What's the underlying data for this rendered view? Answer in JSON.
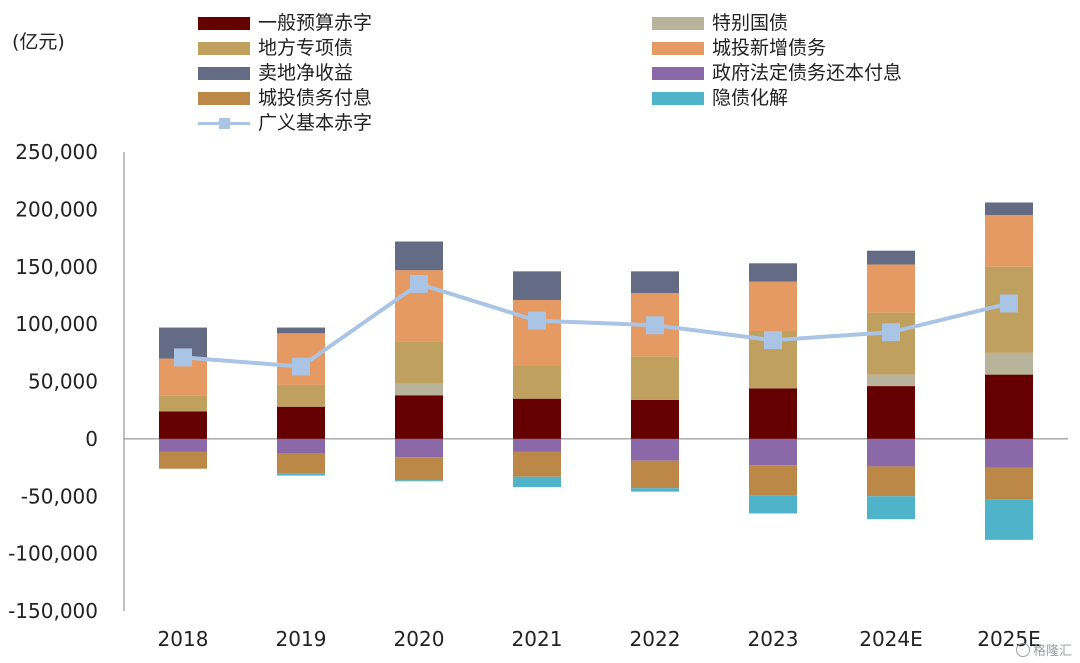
{
  "unit_label": "(亿元)",
  "watermark": "格隆汇",
  "colors": {
    "general_deficit": "#660000",
    "special_treasury": "#b8b49b",
    "special_local_bonds": "#bfa05e",
    "lgfv_new_debt": "#e59a63",
    "land_sales": "#636b85",
    "statutory_debt_principal": "#8b68a8",
    "lgfv_interest": "#bb8848",
    "hidden_debt_resolution": "#4fb3c9",
    "broad_deficit_line": "#a9c4e4",
    "broad_deficit_marker": "#a9c4e4"
  },
  "legend": [
    {
      "key": "general_deficit",
      "label": "一般预算赤字"
    },
    {
      "key": "special_treasury",
      "label": "特别国债"
    },
    {
      "key": "special_local_bonds",
      "label": "地方专项债"
    },
    {
      "key": "lgfv_new_debt",
      "label": "城投新增债务"
    },
    {
      "key": "land_sales",
      "label": "卖地净收益"
    },
    {
      "key": "statutory_debt_principal",
      "label": "政府法定债务还本付息"
    },
    {
      "key": "lgfv_interest",
      "label": "城投债务付息"
    },
    {
      "key": "hidden_debt_resolution",
      "label": "隐债化解"
    },
    {
      "key": "broad_deficit",
      "label": "广义基本赤字"
    }
  ],
  "chart_data": {
    "type": "bar",
    "stacked": true,
    "title": "",
    "ylabel": "(亿元)",
    "ylim": [
      -150000,
      250000
    ],
    "yticks": [
      250000,
      200000,
      150000,
      100000,
      50000,
      0,
      -50000,
      -100000,
      -150000
    ],
    "ytick_labels": [
      "250,000",
      "200,000",
      "150,000",
      "100,000",
      "50,000",
      "0",
      "-50,000",
      "-100,000",
      "-150,000"
    ],
    "categories": [
      "2018",
      "2019",
      "2020",
      "2021",
      "2022",
      "2023",
      "2024E",
      "2025E"
    ],
    "series": [
      {
        "key": "general_deficit",
        "name": "一般预算赤字",
        "values": [
          24000,
          28000,
          38000,
          35000,
          34000,
          44000,
          46000,
          56000
        ]
      },
      {
        "key": "special_treasury",
        "name": "特别国债",
        "values": [
          0,
          0,
          10000,
          0,
          0,
          0,
          10000,
          19000
        ]
      },
      {
        "key": "special_local_bonds",
        "name": "地方专项债",
        "values": [
          14000,
          19000,
          37000,
          29000,
          38000,
          50000,
          54000,
          75000
        ]
      },
      {
        "key": "lgfv_new_debt",
        "name": "城投新增债务",
        "values": [
          32000,
          45000,
          62000,
          57000,
          55000,
          43000,
          42000,
          45000
        ]
      },
      {
        "key": "land_sales",
        "name": "卖地净收益",
        "values": [
          27000,
          5000,
          25000,
          25000,
          19000,
          16000,
          12000,
          11000
        ]
      },
      {
        "key": "statutory_debt_principal",
        "name": "政府法定债务还本付息",
        "values": [
          -11000,
          -13000,
          -16000,
          -11000,
          -19000,
          -23000,
          -24000,
          -25000
        ]
      },
      {
        "key": "lgfv_interest",
        "name": "城投债务付息",
        "values": [
          -15000,
          -17000,
          -20000,
          -22000,
          -24000,
          -26000,
          -26000,
          -28000
        ]
      },
      {
        "key": "hidden_debt_resolution",
        "name": "隐债化解",
        "values": [
          0,
          -2000,
          -1000,
          -9000,
          -3000,
          -16000,
          -20000,
          -35000
        ]
      }
    ],
    "line": {
      "key": "broad_deficit",
      "name": "广义基本赤字",
      "values": [
        71000,
        63000,
        135000,
        103000,
        99000,
        86000,
        93000,
        118000
      ]
    },
    "legend_position": "top",
    "grid": false
  }
}
